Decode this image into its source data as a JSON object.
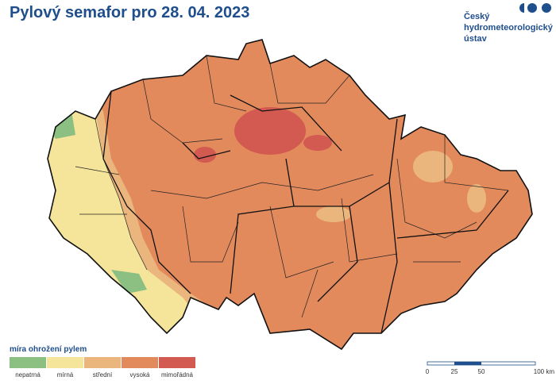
{
  "header": {
    "title": "Pylový semafor pro 28. 04. 2023"
  },
  "logo": {
    "lines": [
      "Český",
      "hydrometeorologický",
      "ústav"
    ]
  },
  "legend": {
    "title": "míra ohrožení pylem",
    "items": [
      {
        "label": "nepatrná",
        "color": "#8cc083"
      },
      {
        "label": "mírná",
        "color": "#f5e59a"
      },
      {
        "label": "střední",
        "color": "#ebb67d"
      },
      {
        "label": "vysoká",
        "color": "#e38a5c"
      },
      {
        "label": "mimořádná",
        "color": "#d25a50"
      }
    ]
  },
  "scale_bar": {
    "labels": [
      "0",
      "25",
      "50",
      "100 km"
    ]
  }
}
